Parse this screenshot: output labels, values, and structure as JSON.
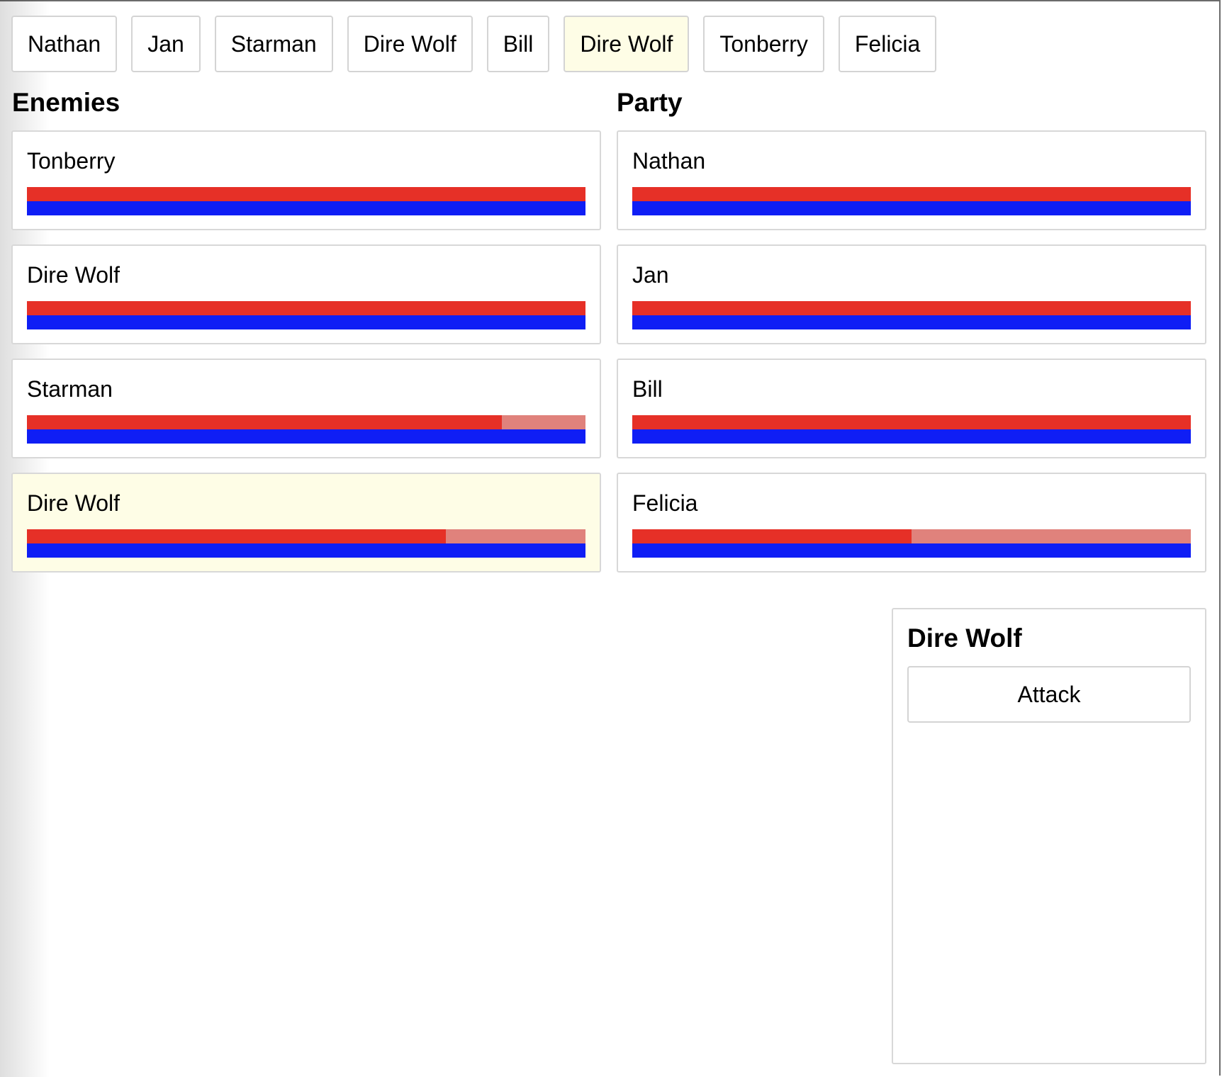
{
  "turn_order": [
    {
      "name": "Nathan",
      "active": false
    },
    {
      "name": "Jan",
      "active": false
    },
    {
      "name": "Starman",
      "active": false
    },
    {
      "name": "Dire Wolf",
      "active": false
    },
    {
      "name": "Bill",
      "active": false
    },
    {
      "name": "Dire Wolf",
      "active": true
    },
    {
      "name": "Tonberry",
      "active": false
    },
    {
      "name": "Felicia",
      "active": false
    }
  ],
  "enemies": {
    "heading": "Enemies",
    "members": [
      {
        "name": "Tonberry",
        "hp": 1.0,
        "mp": 1.0,
        "active": false
      },
      {
        "name": "Dire Wolf",
        "hp": 1.0,
        "mp": 1.0,
        "active": false
      },
      {
        "name": "Starman",
        "hp": 0.85,
        "mp": 1.0,
        "active": false
      },
      {
        "name": "Dire Wolf",
        "hp": 0.75,
        "mp": 1.0,
        "active": true
      }
    ]
  },
  "party": {
    "heading": "Party",
    "members": [
      {
        "name": "Nathan",
        "hp": 1.0,
        "mp": 1.0,
        "active": false
      },
      {
        "name": "Jan",
        "hp": 1.0,
        "mp": 1.0,
        "active": false
      },
      {
        "name": "Bill",
        "hp": 1.0,
        "mp": 1.0,
        "active": false
      },
      {
        "name": "Felicia",
        "hp": 0.5,
        "mp": 1.0,
        "active": false
      }
    ]
  },
  "action_panel": {
    "title": "Dire Wolf",
    "actions": [
      "Attack"
    ]
  },
  "colors": {
    "hp_fill": "#e63027",
    "hp_empty": "#e0827c",
    "mp_fill": "#0f1ef5",
    "active_highlight": "#fefde6"
  }
}
